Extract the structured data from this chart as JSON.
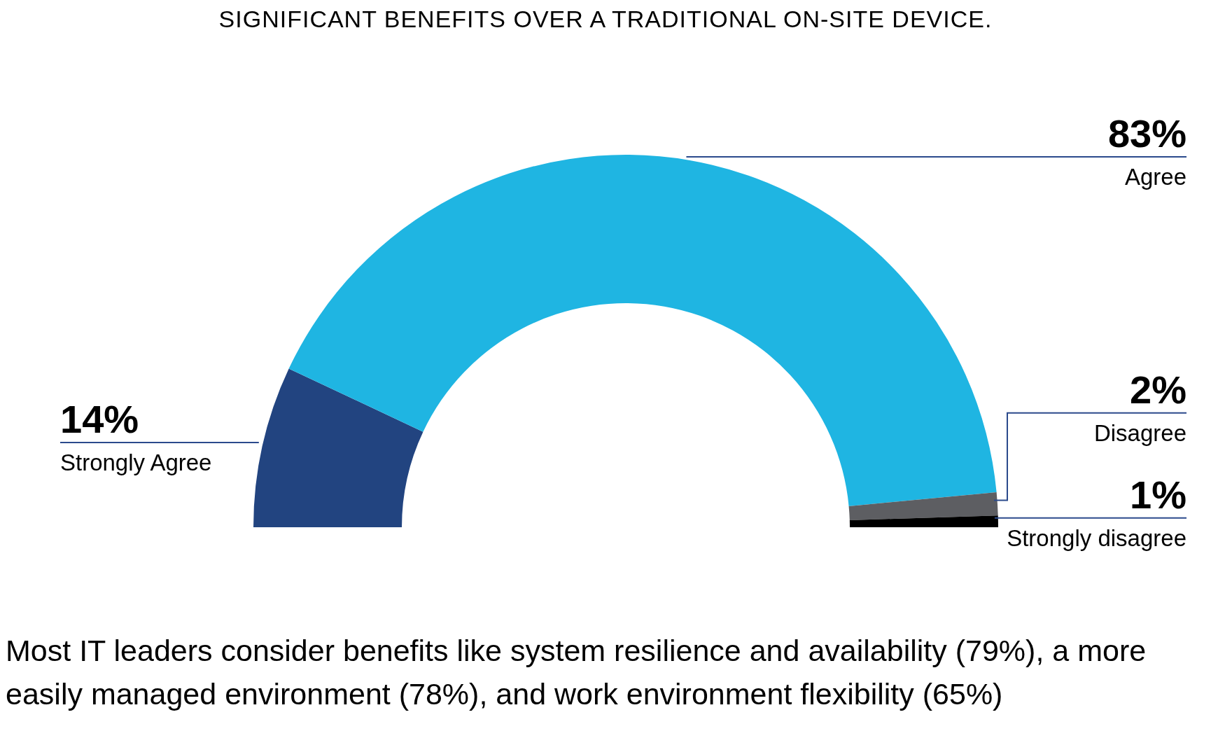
{
  "chart_data": {
    "type": "donut",
    "title": "SIGNIFICANT BENEFITS OVER A TRADITIONAL ON-SITE DEVICE.",
    "categories": [
      "Strongly Agree",
      "Agree",
      "Disagree",
      "Strongly disagree"
    ],
    "values": [
      14,
      83,
      2,
      1
    ],
    "value_labels": [
      "14%",
      "83%",
      "2%",
      "1%"
    ],
    "colors": [
      "#224480",
      "#1fb5e2",
      "#5d5e62",
      "#000000"
    ],
    "legend": false,
    "annotations": [
      "Most IT leaders consider benefits like system resilience and availability (79%), a more easily managed environment (78%), and work environment flexibility (65%)"
    ]
  }
}
